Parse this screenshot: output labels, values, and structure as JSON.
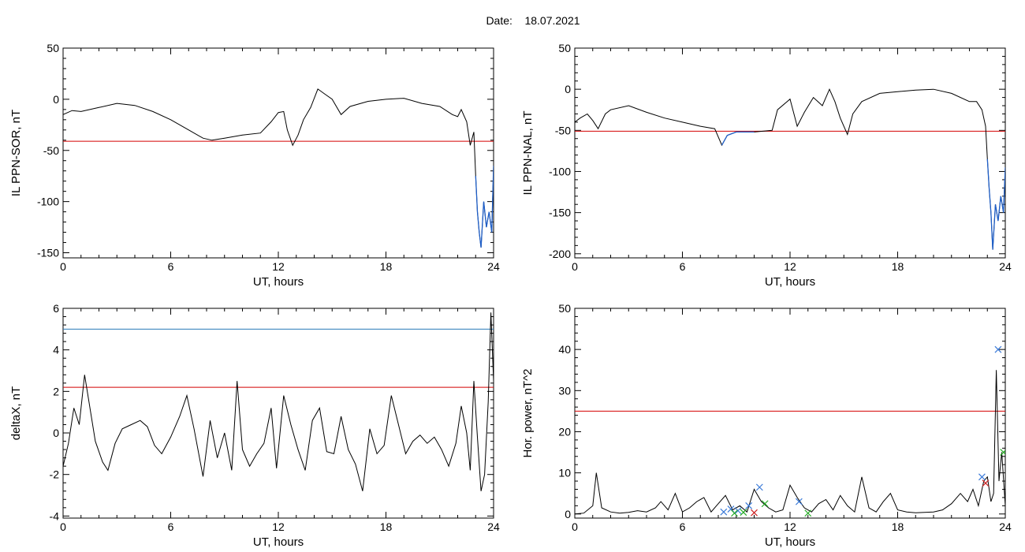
{
  "header": {
    "date_label": "Date:",
    "date_value": "18.07.2021"
  },
  "colors": {
    "data": "#000000",
    "highlight": "#1f5fc8",
    "threshold": "#d40000",
    "threshold2": "#2a7ab8",
    "marker_blue": "#3a7ad8",
    "marker_green": "#22aa22",
    "marker_red": "#cc2222"
  },
  "chart_data": [
    {
      "type": "line",
      "ylabel": "IL PPN-SOR, nT",
      "xlabel": "UT, hours",
      "xlim": [
        0,
        24
      ],
      "ylim": [
        -155,
        50
      ],
      "xticks": [
        0,
        6,
        12,
        18,
        24
      ],
      "yticks": [
        50,
        0,
        -50,
        -100,
        -150
      ],
      "threshold": -41,
      "series": [
        {
          "x": [
            0,
            0.5,
            1,
            2,
            3,
            4,
            5,
            6,
            7,
            7.8,
            8.3,
            9,
            10,
            11,
            11.6,
            12,
            12.3,
            12.5,
            12.8,
            13.1,
            13.4,
            13.8,
            14.2,
            14.6,
            15,
            15.5,
            16,
            17,
            18,
            19,
            20,
            21,
            21.7,
            22,
            22.2,
            22.5,
            22.7,
            22.9,
            23.0,
            23.1,
            23.2,
            23.3,
            23.45,
            23.6,
            23.75,
            23.9,
            24
          ],
          "y": [
            -15,
            -11,
            -12,
            -8,
            -4,
            -6,
            -12,
            -20,
            -30,
            -38,
            -40,
            -38,
            -35,
            -33,
            -22,
            -13,
            -12,
            -30,
            -45,
            -35,
            -20,
            -8,
            10,
            5,
            0,
            -15,
            -7,
            -2,
            0,
            1,
            -4,
            -7,
            -15,
            -17,
            -10,
            -22,
            -45,
            -32,
            -75,
            -110,
            -130,
            -145,
            -100,
            -125,
            -110,
            -130,
            -65
          ]
        }
      ],
      "below_threshold_color": "blue"
    },
    {
      "type": "line",
      "ylabel": "IL PPN-NAL, nT",
      "xlabel": "UT, hours",
      "xlim": [
        0,
        24
      ],
      "ylim": [
        -205,
        50
      ],
      "xticks": [
        0,
        6,
        12,
        18,
        24
      ],
      "yticks": [
        50,
        0,
        -50,
        -100,
        -150,
        -200
      ],
      "threshold": -51,
      "series": [
        {
          "x": [
            0,
            0.3,
            0.7,
            1,
            1.3,
            1.7,
            2,
            3,
            4,
            5,
            6,
            7,
            7.8,
            8.2,
            8.5,
            9,
            10,
            11,
            11.3,
            12,
            12.4,
            12.8,
            13.3,
            13.8,
            14.2,
            14.5,
            14.8,
            15.2,
            15.5,
            16,
            17,
            18,
            19,
            20,
            21,
            22,
            22.4,
            22.7,
            22.9,
            23.0,
            23.1,
            23.2,
            23.3,
            23.45,
            23.6,
            23.75,
            23.9,
            24
          ],
          "y": [
            -40,
            -35,
            -30,
            -38,
            -48,
            -30,
            -25,
            -20,
            -28,
            -35,
            -40,
            -45,
            -48,
            -68,
            -56,
            -52,
            -52,
            -50,
            -25,
            -12,
            -45,
            -28,
            -10,
            -20,
            0,
            -15,
            -35,
            -55,
            -30,
            -15,
            -5,
            -3,
            -1,
            0,
            -5,
            -15,
            -15,
            -25,
            -45,
            -85,
            -120,
            -150,
            -195,
            -140,
            -160,
            -130,
            -150,
            -95
          ]
        }
      ],
      "below_threshold_color": "blue"
    },
    {
      "type": "line",
      "ylabel": "deltaX, nT",
      "xlabel": "UT, hours",
      "xlim": [
        0,
        24
      ],
      "ylim": [
        -4.1,
        6
      ],
      "xticks": [
        0,
        6,
        12,
        18,
        24
      ],
      "yticks": [
        6,
        4,
        2,
        0,
        -2,
        -4
      ],
      "threshold": 2.2,
      "threshold2": 5.0,
      "series": [
        {
          "x": [
            0,
            0.3,
            0.6,
            0.9,
            1.2,
            1.5,
            1.8,
            2.2,
            2.5,
            2.9,
            3.3,
            3.8,
            4.3,
            4.7,
            5.1,
            5.5,
            6,
            6.5,
            6.9,
            7.3,
            7.8,
            8.2,
            8.6,
            9.0,
            9.4,
            9.7,
            10.0,
            10.4,
            10.8,
            11.2,
            11.6,
            11.9,
            12.3,
            12.7,
            13.1,
            13.5,
            13.9,
            14.3,
            14.7,
            15.1,
            15.5,
            15.9,
            16.3,
            16.7,
            17.1,
            17.5,
            17.9,
            18.3,
            18.7,
            19.1,
            19.5,
            19.9,
            20.3,
            20.7,
            21.1,
            21.5,
            21.9,
            22.2,
            22.5,
            22.7,
            22.9,
            23.1,
            23.3,
            23.5,
            23.7,
            23.85,
            24
          ],
          "y": [
            -1.6,
            -0.5,
            1.2,
            0.4,
            2.8,
            1.2,
            -0.4,
            -1.4,
            -1.8,
            -0.5,
            0.2,
            0.4,
            0.6,
            0.3,
            -0.6,
            -1.0,
            -0.2,
            0.8,
            1.8,
            0.2,
            -2.1,
            0.6,
            -1.2,
            0.0,
            -1.8,
            2.5,
            -0.8,
            -1.6,
            -1.0,
            -0.5,
            1.2,
            -1.7,
            1.8,
            0.4,
            -0.8,
            -1.8,
            0.6,
            1.2,
            -0.9,
            -1.0,
            0.8,
            -0.8,
            -1.5,
            -2.8,
            0.2,
            -1.0,
            -0.6,
            1.8,
            0.4,
            -1.0,
            -0.4,
            -0.1,
            -0.5,
            -0.2,
            -0.8,
            -1.6,
            -0.5,
            1.3,
            0.0,
            -1.8,
            2.5,
            -0.2,
            -2.8,
            -2.0,
            1.5,
            5.8,
            2.5
          ]
        }
      ]
    },
    {
      "type": "line",
      "ylabel": "Hor. power, nT^2",
      "xlabel": "UT, hours",
      "xlim": [
        0,
        24
      ],
      "ylim": [
        -1,
        50
      ],
      "xticks": [
        0,
        6,
        12,
        18,
        24
      ],
      "yticks": [
        50,
        40,
        30,
        20,
        10,
        0
      ],
      "threshold": 25,
      "series": [
        {
          "x": [
            0,
            0.5,
            1.0,
            1.2,
            1.5,
            2.0,
            2.5,
            3.0,
            3.5,
            4.0,
            4.5,
            4.8,
            5.2,
            5.6,
            6.0,
            6.4,
            6.8,
            7.2,
            7.6,
            8.0,
            8.4,
            8.8,
            9.2,
            9.6,
            10.0,
            10.4,
            10.8,
            11.2,
            11.6,
            12.0,
            12.4,
            12.8,
            13.2,
            13.6,
            14.0,
            14.4,
            14.8,
            15.2,
            15.6,
            16.0,
            16.4,
            16.8,
            17.2,
            17.6,
            18.0,
            18.5,
            19.0,
            19.5,
            20.0,
            20.5,
            21.0,
            21.5,
            21.9,
            22.2,
            22.5,
            22.8,
            23.0,
            23.2,
            23.35,
            23.5,
            23.65,
            23.8,
            24
          ],
          "y": [
            0,
            0.2,
            2.0,
            10.0,
            1.5,
            0.5,
            0.2,
            0.4,
            0.8,
            0.5,
            1.5,
            3.0,
            1.0,
            5.0,
            0.5,
            1.5,
            3.0,
            4.0,
            0.5,
            2.5,
            4.5,
            1.0,
            2.0,
            0.5,
            6.0,
            3.0,
            1.5,
            0.5,
            1.0,
            7.0,
            4.0,
            1.5,
            0.5,
            2.5,
            3.5,
            1.0,
            4.5,
            2.0,
            0.5,
            9.0,
            1.5,
            0.5,
            3.0,
            5.0,
            1.0,
            0.5,
            0.3,
            0.4,
            0.5,
            1.0,
            2.5,
            5.0,
            3.0,
            6.0,
            2.0,
            8.0,
            9.0,
            3.0,
            5.0,
            35.0,
            8.0,
            15.0,
            2.0
          ]
        }
      ],
      "markers": [
        {
          "x": 8.3,
          "y": 0.5,
          "color": "blue"
        },
        {
          "x": 8.7,
          "y": 1.2,
          "color": "blue"
        },
        {
          "x": 9.1,
          "y": 0.8,
          "color": "blue"
        },
        {
          "x": 9.7,
          "y": 2.0,
          "color": "blue"
        },
        {
          "x": 10.3,
          "y": 6.5,
          "color": "blue"
        },
        {
          "x": 12.5,
          "y": 3.0,
          "color": "blue"
        },
        {
          "x": 22.7,
          "y": 9.0,
          "color": "blue"
        },
        {
          "x": 23.6,
          "y": 40.0,
          "color": "blue"
        },
        {
          "x": 8.9,
          "y": 0.2,
          "color": "green"
        },
        {
          "x": 9.4,
          "y": 0.4,
          "color": "green"
        },
        {
          "x": 10.6,
          "y": 2.5,
          "color": "green"
        },
        {
          "x": 13.0,
          "y": 0.2,
          "color": "green"
        },
        {
          "x": 23.9,
          "y": 15.0,
          "color": "green"
        },
        {
          "x": 10.0,
          "y": 0.3,
          "color": "red"
        },
        {
          "x": 22.9,
          "y": 7.5,
          "color": "red"
        }
      ]
    }
  ]
}
